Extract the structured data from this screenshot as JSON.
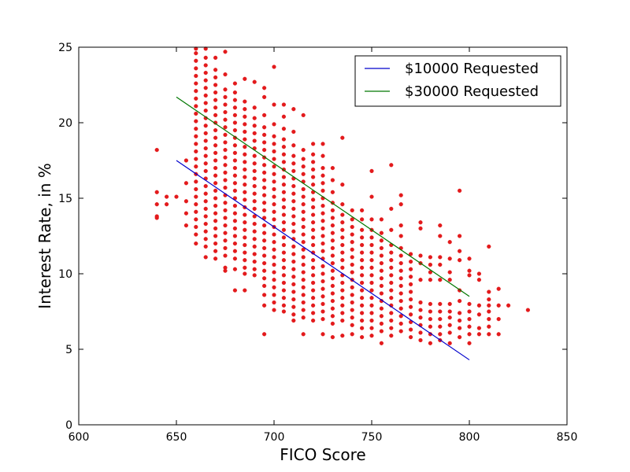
{
  "chart_data": {
    "type": "scatter",
    "title": "",
    "xlabel": "FICO Score",
    "ylabel": "Interest Rate, in %",
    "xlim": [
      600,
      850
    ],
    "ylim": [
      0,
      25
    ],
    "xticks": [
      "600",
      "650",
      "700",
      "750",
      "800",
      "850"
    ],
    "yticks": [
      "0",
      "5",
      "10",
      "15",
      "20",
      "25"
    ],
    "grid": false,
    "legend_placement": "top-right",
    "scatter_color": "#e31a1c",
    "scatter_columns": [
      {
        "x": 640,
        "y": [
          13.7,
          13.8,
          14.6,
          15.4,
          18.2
        ]
      },
      {
        "x": 645,
        "y": [
          14.6,
          15.1
        ]
      },
      {
        "x": 650,
        "y": [
          15.1
        ]
      },
      {
        "x": 655,
        "y": [
          13.2,
          14.0,
          14.8,
          16.0,
          17.5
        ]
      },
      {
        "x": 660,
        "y": [
          12.0,
          12.6,
          13.1,
          13.6,
          14.1,
          14.6,
          15.1,
          15.6,
          16.1,
          16.6,
          17.1,
          17.6,
          18.1,
          18.6,
          19.1,
          19.6,
          20.1,
          20.6,
          21.1,
          21.6,
          22.1,
          22.6,
          23.1,
          23.6,
          24.1,
          24.6,
          24.9
        ]
      },
      {
        "x": 665,
        "y": [
          11.1,
          11.8,
          12.3,
          12.8,
          13.3,
          13.8,
          14.3,
          14.8,
          15.3,
          15.8,
          16.3,
          16.8,
          17.3,
          17.8,
          18.3,
          18.8,
          19.3,
          19.8,
          20.3,
          20.8,
          21.3,
          21.8,
          22.3,
          22.8,
          23.3,
          23.8,
          24.3,
          24.9
        ]
      },
      {
        "x": 670,
        "y": [
          11.0,
          11.5,
          12.0,
          12.5,
          13.0,
          13.5,
          14.0,
          14.5,
          15.0,
          15.5,
          16.0,
          16.5,
          17.0,
          17.5,
          18.0,
          18.5,
          19.0,
          19.5,
          20.0,
          20.5,
          21.0,
          21.5,
          22.0,
          22.5,
          23.0,
          23.5,
          24.3
        ]
      },
      {
        "x": 675,
        "y": [
          10.2,
          10.4,
          11.2,
          11.7,
          12.2,
          12.7,
          13.2,
          13.7,
          14.2,
          14.7,
          15.2,
          15.7,
          16.2,
          16.7,
          17.2,
          17.7,
          18.2,
          18.7,
          19.2,
          19.7,
          20.2,
          20.7,
          21.2,
          21.7,
          22.2,
          23.2,
          24.7
        ]
      },
      {
        "x": 680,
        "y": [
          8.9,
          10.3,
          11.0,
          11.5,
          12.0,
          12.5,
          13.0,
          13.5,
          14.0,
          14.5,
          15.0,
          15.5,
          16.0,
          16.5,
          17.0,
          17.5,
          18.0,
          18.5,
          19.0,
          19.5,
          20.0,
          20.5,
          21.0,
          21.5,
          22.0,
          22.6
        ]
      },
      {
        "x": 685,
        "y": [
          8.9,
          10.0,
          10.4,
          10.9,
          11.4,
          11.9,
          12.4,
          12.9,
          13.4,
          13.9,
          14.4,
          14.9,
          15.4,
          15.9,
          16.4,
          16.9,
          17.4,
          17.9,
          18.4,
          18.9,
          19.4,
          19.9,
          20.4,
          20.9,
          21.4,
          22.9
        ]
      },
      {
        "x": 690,
        "y": [
          9.9,
          10.3,
          10.8,
          11.3,
          11.8,
          12.3,
          12.8,
          13.3,
          13.8,
          14.3,
          14.8,
          15.3,
          15.8,
          16.3,
          16.8,
          17.3,
          17.8,
          18.3,
          18.8,
          19.3,
          19.8,
          20.3,
          21.0,
          22.7
        ]
      },
      {
        "x": 695,
        "y": [
          6.0,
          7.9,
          8.6,
          9.2,
          9.7,
          10.2,
          10.7,
          11.2,
          11.7,
          12.2,
          12.7,
          13.2,
          13.7,
          14.2,
          14.7,
          15.2,
          15.7,
          16.2,
          16.7,
          17.2,
          17.7,
          18.2,
          18.7,
          19.2,
          19.7,
          20.5,
          21.7,
          22.3
        ]
      },
      {
        "x": 700,
        "y": [
          7.6,
          8.1,
          8.6,
          9.1,
          9.6,
          10.1,
          10.6,
          11.1,
          11.6,
          12.1,
          12.6,
          13.1,
          13.6,
          14.1,
          14.6,
          15.1,
          15.6,
          16.1,
          16.6,
          17.1,
          17.6,
          18.1,
          18.6,
          19.1,
          19.9,
          21.2,
          23.7
        ]
      },
      {
        "x": 705,
        "y": [
          7.5,
          7.9,
          8.4,
          8.9,
          9.4,
          9.9,
          10.4,
          10.9,
          11.4,
          11.9,
          12.4,
          12.9,
          13.4,
          13.9,
          14.4,
          14.9,
          15.4,
          15.9,
          16.4,
          16.9,
          17.4,
          17.9,
          18.4,
          18.9,
          19.6,
          20.4,
          21.2
        ]
      },
      {
        "x": 710,
        "y": [
          6.9,
          7.3,
          7.8,
          8.3,
          8.8,
          9.3,
          9.8,
          10.3,
          10.8,
          11.3,
          11.8,
          12.3,
          12.8,
          13.3,
          13.8,
          14.3,
          14.8,
          15.3,
          15.8,
          16.3,
          16.8,
          17.3,
          17.8,
          18.5,
          19.4,
          20.9
        ]
      },
      {
        "x": 715,
        "y": [
          6.0,
          7.1,
          7.6,
          8.1,
          8.6,
          9.1,
          9.6,
          10.1,
          10.6,
          11.1,
          11.6,
          12.1,
          12.6,
          13.1,
          13.6,
          14.1,
          14.6,
          15.1,
          15.6,
          16.1,
          16.6,
          17.1,
          17.6,
          18.2,
          20.5
        ]
      },
      {
        "x": 720,
        "y": [
          6.9,
          7.4,
          7.9,
          8.4,
          8.9,
          9.4,
          9.9,
          10.4,
          10.9,
          11.4,
          11.9,
          12.4,
          12.9,
          13.4,
          13.9,
          14.4,
          14.9,
          15.4,
          15.9,
          16.4,
          16.9,
          17.4,
          17.9,
          18.6
        ]
      },
      {
        "x": 725,
        "y": [
          6.0,
          7.0,
          7.5,
          8.0,
          8.5,
          9.0,
          9.5,
          10.0,
          10.5,
          11.0,
          11.5,
          12.0,
          12.5,
          13.0,
          13.5,
          14.0,
          14.5,
          15.0,
          15.5,
          16.0,
          16.5,
          17.0,
          17.8,
          18.6
        ]
      },
      {
        "x": 730,
        "y": [
          5.8,
          6.7,
          7.2,
          7.7,
          8.2,
          8.7,
          9.2,
          9.7,
          10.2,
          10.7,
          11.2,
          11.7,
          12.2,
          12.7,
          13.2,
          13.7,
          14.2,
          14.7,
          15.4,
          16.2,
          17.0
        ]
      },
      {
        "x": 735,
        "y": [
          5.9,
          6.9,
          7.4,
          7.9,
          8.4,
          8.9,
          9.4,
          9.9,
          10.4,
          10.9,
          11.4,
          11.9,
          12.4,
          12.9,
          13.4,
          13.9,
          14.6,
          15.9,
          19.0
        ]
      },
      {
        "x": 740,
        "y": [
          6.0,
          6.6,
          7.1,
          7.6,
          8.1,
          8.6,
          9.1,
          9.6,
          10.1,
          10.6,
          11.1,
          11.6,
          12.1,
          12.6,
          13.1,
          13.6,
          14.2
        ]
      },
      {
        "x": 745,
        "y": [
          5.8,
          6.4,
          6.9,
          7.4,
          7.9,
          8.4,
          8.9,
          9.4,
          9.9,
          10.4,
          10.9,
          11.4,
          11.9,
          12.4,
          12.9,
          13.6,
          14.2
        ]
      },
      {
        "x": 750,
        "y": [
          5.9,
          6.4,
          6.9,
          7.4,
          7.9,
          8.4,
          8.9,
          9.4,
          9.9,
          10.4,
          10.9,
          11.4,
          11.9,
          12.4,
          12.9,
          13.6,
          15.1,
          16.8
        ]
      },
      {
        "x": 755,
        "y": [
          5.4,
          6.2,
          6.7,
          7.2,
          7.7,
          8.2,
          8.7,
          9.2,
          9.7,
          10.2,
          10.7,
          11.2,
          11.7,
          12.2,
          12.7,
          13.6
        ]
      },
      {
        "x": 760,
        "y": [
          5.9,
          6.4,
          6.9,
          7.4,
          7.9,
          8.4,
          8.9,
          9.4,
          9.9,
          10.4,
          10.9,
          11.4,
          11.9,
          12.9,
          14.3,
          17.2
        ]
      },
      {
        "x": 765,
        "y": [
          6.2,
          6.7,
          7.2,
          7.7,
          8.2,
          8.7,
          9.2,
          9.7,
          10.2,
          10.7,
          11.2,
          11.7,
          12.5,
          13.2,
          14.6,
          15.2
        ]
      },
      {
        "x": 770,
        "y": [
          5.8,
          6.3,
          6.8,
          7.3,
          7.8,
          8.3,
          8.8,
          9.3,
          9.8,
          10.3,
          10.8,
          11.3
        ]
      },
      {
        "x": 775,
        "y": [
          5.6,
          6.1,
          6.6,
          7.1,
          7.6,
          8.1,
          9.6,
          10.7,
          11.2,
          13.0,
          13.4
        ]
      },
      {
        "x": 780,
        "y": [
          5.4,
          6.0,
          6.5,
          7.0,
          7.5,
          8.0,
          9.6,
          10.1,
          10.6,
          11.1
        ]
      },
      {
        "x": 785,
        "y": [
          5.6,
          6.0,
          6.5,
          7.0,
          7.5,
          8.0,
          9.6,
          10.6,
          11.1,
          12.5,
          13.2
        ]
      },
      {
        "x": 790,
        "y": [
          5.4,
          6.1,
          6.6,
          7.1,
          7.5,
          8.0,
          9.6,
          10.1,
          11.0,
          12.1
        ]
      },
      {
        "x": 795,
        "y": [
          5.8,
          6.4,
          6.9,
          7.4,
          8.2,
          8.9,
          10.9,
          11.5,
          12.5,
          15.5
        ]
      },
      {
        "x": 800,
        "y": [
          5.4,
          6.0,
          6.5,
          7.0,
          7.5,
          8.0,
          9.9,
          10.2,
          11.0
        ]
      },
      {
        "x": 805,
        "y": [
          6.0,
          6.4,
          7.3,
          7.9,
          9.6,
          10.0
        ]
      },
      {
        "x": 810,
        "y": [
          6.0,
          6.5,
          7.0,
          7.5,
          7.9,
          8.3,
          8.8,
          11.8
        ]
      },
      {
        "x": 815,
        "y": [
          6.0,
          7.0,
          7.9,
          9.0
        ]
      },
      {
        "x": 820,
        "y": [
          7.9
        ]
      },
      {
        "x": 830,
        "y": [
          7.6
        ]
      }
    ],
    "series": [
      {
        "name": "$10000 Requested",
        "type": "line",
        "color": "#0000cc",
        "x": [
          650,
          800
        ],
        "y": [
          17.5,
          4.3
        ]
      },
      {
        "name": "$30000 Requested",
        "type": "line",
        "color": "#007700",
        "x": [
          650,
          800
        ],
        "y": [
          21.7,
          8.5
        ]
      }
    ]
  }
}
